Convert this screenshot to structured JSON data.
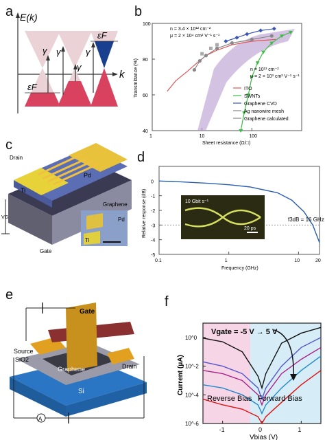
{
  "figure": {
    "panel_labels": {
      "a": "a",
      "b": "b",
      "c": "c",
      "d": "d",
      "e": "e",
      "f": "f"
    }
  },
  "panel_a": {
    "ek_label": "E(k)",
    "k_label": "k",
    "gamma": "γ",
    "eF": "εF",
    "colors": {
      "pink": "#d8425f",
      "lightpink": "#ead2d6",
      "blue": "#1b3f8f"
    }
  },
  "panel_b": {
    "annotation_top": [
      "n = 3.4 × 10¹² cm⁻²",
      "μ = 2 × 10⁴ cm² V⁻¹ s⁻¹"
    ],
    "annotation_right": [
      "n = 10¹³ cm⁻²",
      "μ = 2 × 10³ cm² V⁻¹ s⁻¹"
    ],
    "legend": [
      "ITO",
      "SWNTs",
      "Graphene CVD",
      "Ag nanowire mesh",
      "Graphene calculated"
    ],
    "colors": {
      "ITO": "#e05555",
      "SWNTs": "#3dbb45",
      "Graphene CVD": "#3a55b4",
      "Ag": "#888888",
      "calc": "#b89ad0"
    }
  },
  "panel_c": {
    "labels": {
      "pd": "Pd",
      "drain": "Drain",
      "ti": "Ti",
      "vg": "VG",
      "graphene": "Graphene",
      "gate": "Gate",
      "pd_inset": "Pd",
      "ti_inset": "Ti"
    }
  },
  "panel_d": {
    "inset_rate": "10 Gbit s⁻¹",
    "inset_scale": "20 ps",
    "f3db": "f3dB = 16 GHz"
  },
  "panel_e": {
    "labels": {
      "gate": "Gate",
      "insulator": "Insulator",
      "source": "Source",
      "sio2": "SiO2",
      "graphene": "Graphene",
      "drain": "Drain",
      "si": "Si",
      "meter": "A"
    }
  },
  "panel_f": {
    "title": "Vgate = -5 V → 5 V",
    "reverse": "Reverse Bias",
    "forward": "Forward Bias"
  },
  "chart_data": [
    {
      "panel": "b",
      "type": "line",
      "xlabel": "Sheet resistance (Ω/□)",
      "ylabel": "Transmittance (%)",
      "xscale": "log",
      "xlim": [
        1,
        1000
      ],
      "ylim": [
        40,
        100
      ],
      "xticks": [
        "1",
        "10",
        "100"
      ],
      "yticks": [
        "40",
        "60",
        "80",
        "100"
      ],
      "legend_position": "bottom-right",
      "series": [
        {
          "name": "ITO",
          "x": [
            2,
            3,
            5,
            8,
            12,
            20,
            40,
            100,
            300
          ],
          "y": [
            62,
            68,
            73,
            78,
            82,
            85,
            88,
            90,
            91
          ]
        },
        {
          "name": "SWNTs",
          "x": [
            60,
            70,
            85,
            100,
            130,
            170,
            250,
            400,
            600
          ],
          "y": [
            40,
            50,
            60,
            70,
            78,
            84,
            89,
            93,
            95
          ]
        },
        {
          "name": "Graphene CVD",
          "x": [
            30,
            50,
            80,
            150,
            280
          ],
          "y": [
            90,
            92,
            94,
            96,
            97
          ]
        },
        {
          "name": "Ag nanowire mesh",
          "x": [
            7,
            9,
            12,
            20,
            40,
            100,
            250
          ],
          "y": [
            74,
            79,
            82,
            86,
            89,
            91,
            93
          ]
        },
        {
          "name": "Graphene calculated",
          "x": [
            10,
            15,
            20
          ],
          "y": [
            83,
            86,
            88
          ]
        }
      ]
    },
    {
      "panel": "d",
      "type": "line",
      "xlabel": "Frequency (GHz)",
      "ylabel": "Relative response (dB)",
      "xscale": "log",
      "xlim": [
        0.1,
        20
      ],
      "ylim": [
        -5,
        1
      ],
      "xticks": [
        "0.1",
        "1",
        "10",
        "20"
      ],
      "yticks": [
        "0",
        "-1",
        "-2",
        "-3",
        "-4",
        "-5"
      ],
      "series": [
        {
          "x": [
            0.1,
            0.2,
            0.5,
            1,
            2,
            5,
            8,
            12,
            16,
            20
          ],
          "y": [
            0,
            -0.05,
            -0.15,
            -0.25,
            -0.4,
            -0.8,
            -1.3,
            -2.1,
            -3,
            -4.2
          ]
        }
      ]
    },
    {
      "panel": "f",
      "type": "line",
      "xlabel": "Vbias (V)",
      "ylabel": "Current (μA)",
      "yscale": "log",
      "xlim": [
        -1.5,
        1.5
      ],
      "ylim": [
        1e-06,
        10
      ],
      "xticks": [
        "-1",
        "0",
        "1"
      ],
      "yticks": [
        "10^0",
        "10^-2",
        "10^-4",
        "10^-6"
      ],
      "series": [
        {
          "x": [
            -1.5,
            -1,
            -0.5,
            -0.1,
            0,
            0.1,
            0.5,
            1,
            1.5
          ],
          "y": [
            0.9,
            0.5,
            0.1,
            0.002,
            0.0003,
            0.003,
            0.4,
            2,
            5
          ]
        },
        {
          "x": [
            -1.5,
            -1,
            -0.5,
            -0.1,
            0,
            0.1,
            0.5,
            1,
            1.5
          ],
          "y": [
            0.02,
            0.01,
            0.003,
            0.0003,
            5e-05,
            0.0003,
            0.01,
            0.2,
            1
          ]
        },
        {
          "x": [
            -1.5,
            -1,
            -0.5,
            -0.1,
            0,
            0.1,
            0.5,
            1,
            1.5
          ],
          "y": [
            0.005,
            0.003,
            0.001,
            0.0001,
            2e-05,
            0.0001,
            0.003,
            0.03,
            0.2
          ]
        },
        {
          "x": [
            -1.5,
            -1,
            -0.5,
            -0.1,
            0,
            0.1,
            0.5,
            1,
            1.5
          ],
          "y": [
            0.0005,
            0.0003,
            0.0001,
            2e-05,
            5e-06,
            2e-05,
            0.0003,
            0.005,
            0.05
          ]
        },
        {
          "x": [
            -1.5,
            -1,
            -0.5,
            -0.1,
            0,
            0.1,
            0.5,
            1,
            1.5
          ],
          "y": [
            5e-05,
            2e-05,
            1e-05,
            3e-06,
            1e-06,
            3e-06,
            3e-05,
            0.0005,
            0.005
          ]
        }
      ]
    }
  ]
}
